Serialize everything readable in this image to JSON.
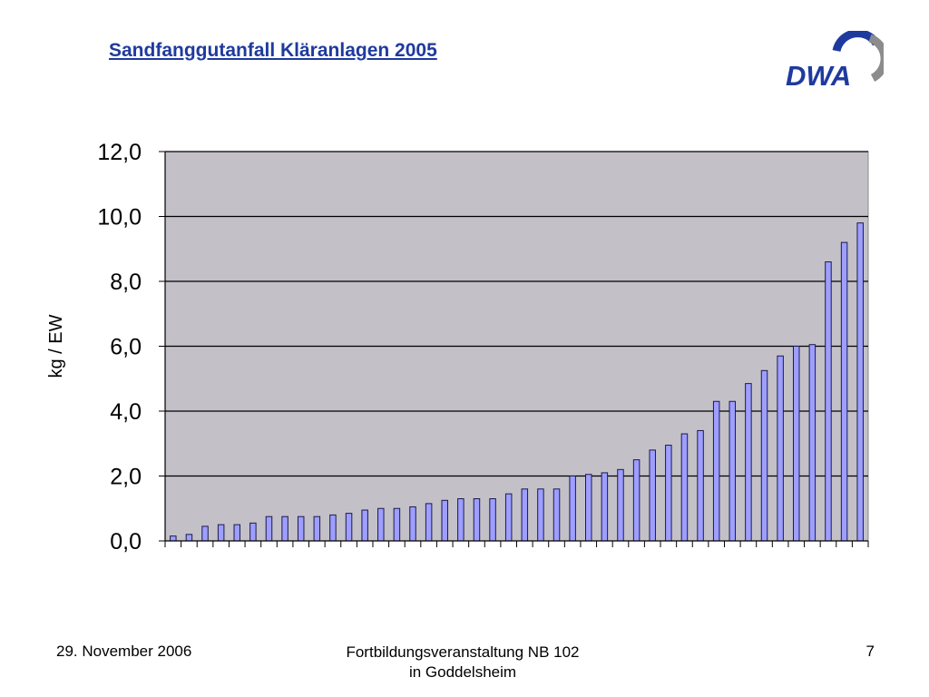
{
  "slide": {
    "title": "Sandfanggutanfall Kläranlagen 2005",
    "logo_text": "DWA"
  },
  "footer": {
    "date": "29. November 2006",
    "event_line1": "Fortbildungsveranstaltung NB 102",
    "event_line2": "in Goddelsheim",
    "page": "7"
  },
  "colors": {
    "title": "#1f3a9e",
    "bar_fill": "#9e9eff",
    "bar_stroke": "#1a1a4d",
    "plot_bg": "#c3c1c7",
    "logo_blue": "#1f3a9e",
    "logo_gray": "#8c8c8c"
  },
  "chart_data": {
    "type": "bar",
    "title": "",
    "xlabel": "",
    "ylabel": "kg / EW",
    "ylim": [
      0,
      12
    ],
    "yticks": [
      "0,0",
      "2,0",
      "4,0",
      "6,0",
      "8,0",
      "10,0",
      "12,0"
    ],
    "grid": true,
    "values": [
      0.15,
      0.2,
      0.45,
      0.5,
      0.5,
      0.55,
      0.75,
      0.75,
      0.75,
      0.75,
      0.8,
      0.85,
      0.95,
      1.0,
      1.0,
      1.05,
      1.15,
      1.25,
      1.3,
      1.3,
      1.3,
      1.45,
      1.6,
      1.6,
      1.6,
      2.0,
      2.05,
      2.1,
      2.2,
      2.5,
      2.8,
      2.95,
      3.3,
      3.4,
      4.3,
      4.3,
      4.85,
      5.25,
      5.7,
      6.0,
      6.05,
      8.6,
      9.2,
      9.8
    ]
  }
}
